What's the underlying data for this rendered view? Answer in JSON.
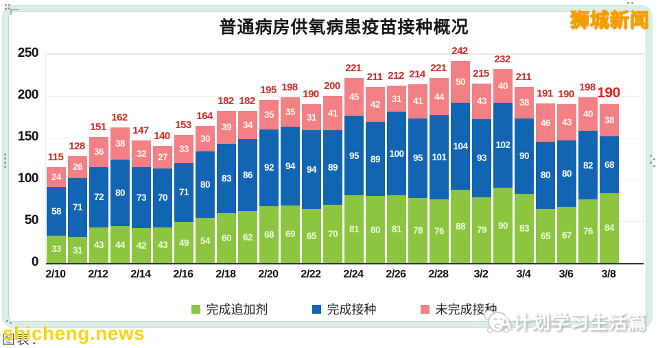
{
  "page": {
    "brand_logo": "狮城新闻",
    "bottom_right_watermark": "A计划学习生活篇",
    "site_watermark": "shicheng.news",
    "chart_credit": "图表："
  },
  "chart_data": {
    "type": "bar",
    "stacked": true,
    "title": "普通病房供氧病患疫苗接种概况",
    "categories": [
      "2/10",
      "2/11",
      "2/12",
      "2/13",
      "2/14",
      "2/15",
      "2/16",
      "2/17",
      "2/18",
      "2/19",
      "2/20",
      "2/21",
      "2/22",
      "2/23",
      "2/24",
      "2/25",
      "2/26",
      "2/27",
      "2/28",
      "3/1",
      "3/2",
      "3/3",
      "3/4",
      "3/5",
      "3/6",
      "3/7",
      "3/8"
    ],
    "tick_labels": [
      "2/10",
      "2/12",
      "2/14",
      "2/16",
      "2/18",
      "2/20",
      "2/22",
      "2/24",
      "2/26",
      "2/28",
      "3/2",
      "3/4",
      "3/6",
      "3/8"
    ],
    "series": [
      {
        "name": "完成追加剂",
        "slug": "booster",
        "color": "#8cc540",
        "values": [
          33,
          31,
          43,
          44,
          42,
          43,
          49,
          54,
          60,
          62,
          68,
          69,
          65,
          70,
          81,
          80,
          81,
          78,
          76,
          88,
          79,
          90,
          83,
          65,
          67,
          76,
          84
        ]
      },
      {
        "name": "完成接种",
        "slug": "full",
        "color": "#1265b2",
        "values": [
          58,
          71,
          72,
          80,
          73,
          70,
          71,
          80,
          83,
          86,
          92,
          94,
          94,
          89,
          95,
          89,
          100,
          95,
          101,
          104,
          93,
          102,
          90,
          80,
          80,
          82,
          68
        ]
      },
      {
        "name": "未完成接种",
        "slug": "notfull",
        "color": "#f28084",
        "values": [
          24,
          26,
          36,
          38,
          32,
          27,
          33,
          30,
          39,
          34,
          35,
          35,
          31,
          41,
          45,
          42,
          31,
          41,
          44,
          50,
          43,
          40,
          38,
          46,
          43,
          40,
          38
        ]
      }
    ],
    "totals": [
      115,
      128,
      151,
      162,
      147,
      140,
      153,
      164,
      182,
      182,
      195,
      198,
      190,
      200,
      221,
      211,
      212,
      214,
      221,
      242,
      215,
      232,
      211,
      191,
      190,
      198,
      190
    ],
    "ylim": [
      0,
      250
    ],
    "yticks": [
      0,
      50,
      100,
      150,
      200,
      250
    ],
    "grid": "faint-horizontal",
    "legend_position": "bottom",
    "total_label_color": "#cf2b27",
    "final_total_color": "#e4201a"
  }
}
